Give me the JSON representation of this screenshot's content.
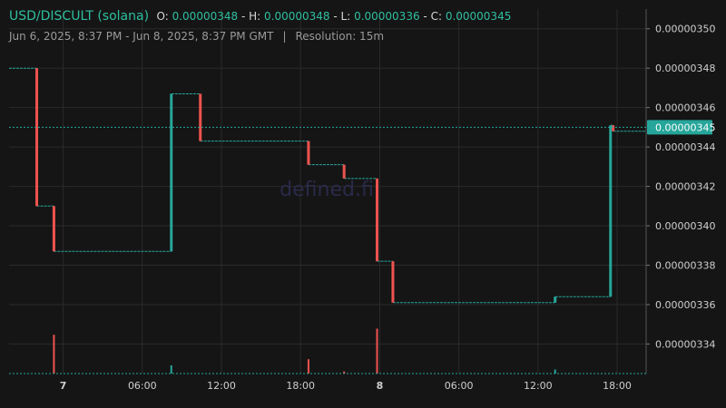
{
  "header": {
    "symbol": "USD/DISCULT (solana)",
    "o_label": "O:",
    "o_value": "0.00000348",
    "h_label": "H:",
    "h_value": "0.00000348",
    "l_label": "L:",
    "l_value": "0.00000336",
    "c_label": "C:",
    "c_value": "0.00000345",
    "range": "Jun 6, 2025, 8:37 PM - Jun 8, 2025, 8:37 PM GMT",
    "separator": "|",
    "resolution": "Resolution: 15m"
  },
  "watermark": "defined.fi",
  "colors": {
    "up": "#26a69a",
    "down": "#ef5350",
    "last_price_bg": "#26a69a",
    "background": "#151515",
    "grid": "#2a2a2a"
  },
  "chart_data": {
    "type": "candlestick",
    "last_price": 3.45e-06,
    "last_price_label": "0.00000345",
    "ylim": [
      3.325e-06,
      3.51e-06
    ],
    "y_ticks": [
      {
        "value": 3.34e-06,
        "label": "0.00000334"
      },
      {
        "value": 3.36e-06,
        "label": "0.00000336"
      },
      {
        "value": 3.38e-06,
        "label": "0.00000338"
      },
      {
        "value": 3.4e-06,
        "label": "0.00000340"
      },
      {
        "value": 3.42e-06,
        "label": "0.00000342"
      },
      {
        "value": 3.44e-06,
        "label": "0.00000344"
      },
      {
        "value": 3.46e-06,
        "label": "0.00000346"
      },
      {
        "value": 3.48e-06,
        "label": "0.00000348"
      },
      {
        "value": 3.5e-06,
        "label": "0.00000350"
      }
    ],
    "x_range_hours": [
      -0.7,
      47.6
    ],
    "x_ticks": [
      {
        "hour": 3.4,
        "label": "7",
        "bold": true
      },
      {
        "hour": 9.4,
        "label": "06:00"
      },
      {
        "hour": 15.4,
        "label": "12:00"
      },
      {
        "hour": 21.4,
        "label": "18:00"
      },
      {
        "hour": 27.4,
        "label": "8",
        "bold": true
      },
      {
        "hour": 33.4,
        "label": "06:00"
      },
      {
        "hour": 39.4,
        "label": "12:00"
      },
      {
        "hour": 45.4,
        "label": "18:00"
      }
    ],
    "candles": [
      {
        "h": 1.4,
        "o": 3.48e-06,
        "c": 3.41e-06,
        "vol": 0.0
      },
      {
        "h": 2.7,
        "o": 3.41e-06,
        "c": 3.387e-06,
        "vol": 0.95
      },
      {
        "h": 11.6,
        "o": 3.387e-06,
        "c": 3.467e-06,
        "vol": 0.2
      },
      {
        "h": 13.8,
        "o": 3.467e-06,
        "c": 3.443e-06,
        "vol": 0.0
      },
      {
        "h": 22.0,
        "o": 3.443e-06,
        "c": 3.431e-06,
        "vol": 0.35
      },
      {
        "h": 24.7,
        "o": 3.431e-06,
        "c": 3.424e-06,
        "vol": 0.05
      },
      {
        "h": 27.2,
        "o": 3.424e-06,
        "c": 3.382e-06,
        "vol": 1.1
      },
      {
        "h": 28.4,
        "o": 3.382e-06,
        "c": 3.361e-06,
        "vol": 0.0
      },
      {
        "h": 40.7,
        "o": 3.361e-06,
        "c": 3.364e-06,
        "vol": 0.1
      },
      {
        "h": 44.9,
        "o": 3.364e-06,
        "c": 3.451e-06,
        "vol": 0.0
      },
      {
        "h": 45.1,
        "o": 3.451e-06,
        "c": 3.448e-06,
        "vol": 0.0
      }
    ],
    "start": {
      "h": -0.7,
      "price": 3.48e-06
    },
    "end": {
      "h": 47.6
    }
  }
}
